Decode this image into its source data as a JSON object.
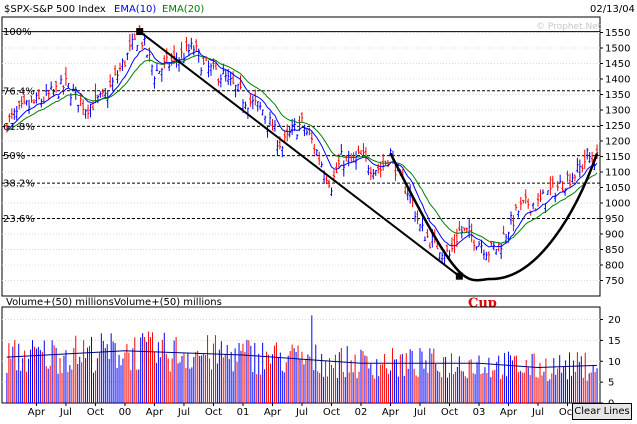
{
  "header": {
    "symbol": "$SPX-S&P 500 Index",
    "ema10_label": "EMA(10)",
    "ema20_label": "EMA(20)",
    "date": "02/13/04",
    "watermark": "© Prophet.Net",
    "volume_label_1": "Volume+(50) millions",
    "volume_label_2": "Volume+(50) millions"
  },
  "colors": {
    "ema10": "#0000ff",
    "ema20": "#008000",
    "up_bar": "#0000ff",
    "down_bar": "#ff0000",
    "volume_ma": "#000080",
    "cup": "#dd0000",
    "trendline": "#000000"
  },
  "annotations": {
    "cup_label": "Cup",
    "fib_levels": [
      {
        "label": "100%",
        "value": 1553
      },
      {
        "label": "76.4%",
        "value": 1362
      },
      {
        "label": "61.8%",
        "value": 1247
      },
      {
        "label": "50%",
        "value": 1153
      },
      {
        "label": "38.2%",
        "value": 1064
      },
      {
        "label": "23.6%",
        "value": 950
      }
    ]
  },
  "clear_button": "Clear Lines",
  "chart_data": {
    "type": "line",
    "title": "$SPX-S&P 500 Index",
    "price_axis": {
      "ylim": [
        700,
        1600
      ],
      "ticks": [
        750,
        800,
        850,
        900,
        950,
        1000,
        1050,
        1100,
        1150,
        1200,
        1250,
        1300,
        1350,
        1400,
        1450,
        1500,
        1550
      ]
    },
    "volume_axis": {
      "ylim": [
        0,
        23
      ],
      "ticks": [
        0,
        5,
        10,
        15,
        20
      ]
    },
    "x_axis": {
      "ticks": [
        "Apr",
        "Jul",
        "Oct",
        "00",
        "Apr",
        "Jul",
        "Oct",
        "01",
        "Apr",
        "Jul",
        "Oct",
        "02",
        "Apr",
        "Jul",
        "Oct",
        "03",
        "Apr",
        "Jul",
        "Oct"
      ],
      "tick_months": [
        3,
        6,
        9,
        12,
        15,
        18,
        21,
        24,
        27,
        30,
        33,
        36,
        39,
        42,
        45,
        48,
        51,
        54,
        57
      ]
    },
    "x_units": "months since Jan 1999",
    "series": [
      {
        "name": "$SPX-S&P 500 Index",
        "points": [
          [
            0,
            1260
          ],
          [
            2,
            1310
          ],
          [
            4,
            1340
          ],
          [
            6,
            1380
          ],
          [
            8,
            1310
          ],
          [
            10,
            1340
          ],
          [
            12,
            1460
          ],
          [
            13.5,
            1545
          ],
          [
            15,
            1420
          ],
          [
            17,
            1460
          ],
          [
            19,
            1500
          ],
          [
            20,
            1440
          ],
          [
            22,
            1410
          ],
          [
            24,
            1340
          ],
          [
            26,
            1300
          ],
          [
            28,
            1180
          ],
          [
            29,
            1230
          ],
          [
            30,
            1255
          ],
          [
            31,
            1200
          ],
          [
            32,
            1130
          ],
          [
            33,
            1060
          ],
          [
            34,
            1140
          ],
          [
            35,
            1130
          ],
          [
            36,
            1150
          ],
          [
            37,
            1120
          ],
          [
            38,
            1110
          ],
          [
            39,
            1160
          ],
          [
            40,
            1075
          ],
          [
            41,
            1030
          ],
          [
            42,
            920
          ],
          [
            43,
            880
          ],
          [
            44,
            860
          ],
          [
            45,
            830
          ],
          [
            46,
            910
          ],
          [
            47,
            900
          ],
          [
            48,
            875
          ],
          [
            49,
            845
          ],
          [
            50,
            860
          ],
          [
            51,
            920
          ],
          [
            52,
            975
          ],
          [
            53,
            1000
          ],
          [
            54,
            995
          ],
          [
            55,
            1030
          ],
          [
            56,
            1050
          ],
          [
            57,
            1080
          ],
          [
            58,
            1100
          ],
          [
            59,
            1150
          ],
          [
            60,
            1140
          ]
        ]
      }
    ],
    "volume": {
      "moving_average": [
        [
          0,
          11
        ],
        [
          12,
          12.5
        ],
        [
          24,
          11.5
        ],
        [
          33,
          10
        ],
        [
          36,
          9.5
        ],
        [
          42,
          9.5
        ],
        [
          48,
          9.5
        ],
        [
          54,
          8.5
        ],
        [
          60,
          9
        ]
      ],
      "spike": [
        31,
        21
      ]
    },
    "drawn_lines": {
      "downtrend": [
        [
          13.5,
          1553
        ],
        [
          46,
          764
        ]
      ],
      "cup_left": [
        [
          39,
          1160
        ],
        [
          46,
          760
        ],
        [
          49,
          755
        ],
        [
          60,
          1160
        ]
      ]
    }
  }
}
